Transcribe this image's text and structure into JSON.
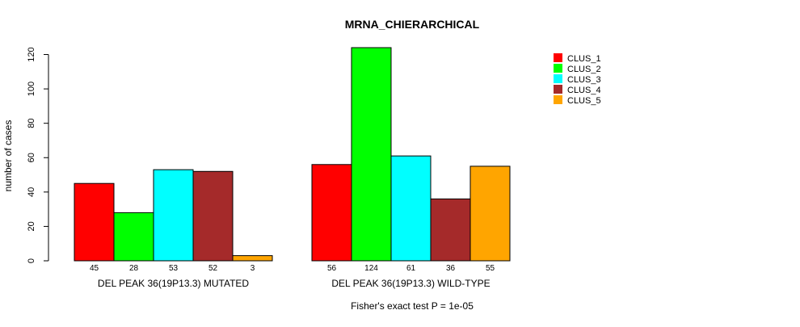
{
  "chart_data": {
    "type": "bar",
    "title": "MRNA_CHIERARCHICAL",
    "ylabel": "number of cases",
    "xlabel": "",
    "ylim": [
      0,
      124
    ],
    "yticks": [
      0,
      20,
      40,
      60,
      80,
      100,
      120
    ],
    "groups": [
      {
        "label": "DEL PEAK 36(19P13.3) MUTATED",
        "values": [
          45,
          28,
          53,
          52,
          3
        ]
      },
      {
        "label": "DEL PEAK 36(19P13.3) WILD-TYPE",
        "values": [
          56,
          124,
          61,
          36,
          55
        ]
      }
    ],
    "series": [
      {
        "name": "CLUS_1",
        "color": "#ff0000"
      },
      {
        "name": "CLUS_2",
        "color": "#00ff00"
      },
      {
        "name": "CLUS_3",
        "color": "#00ffff"
      },
      {
        "name": "CLUS_4",
        "color": "#a52a2a"
      },
      {
        "name": "CLUS_5",
        "color": "#ffa500"
      }
    ],
    "legend_position": "top-right",
    "footnote": "Fisher's exact test P = 1e-05"
  }
}
